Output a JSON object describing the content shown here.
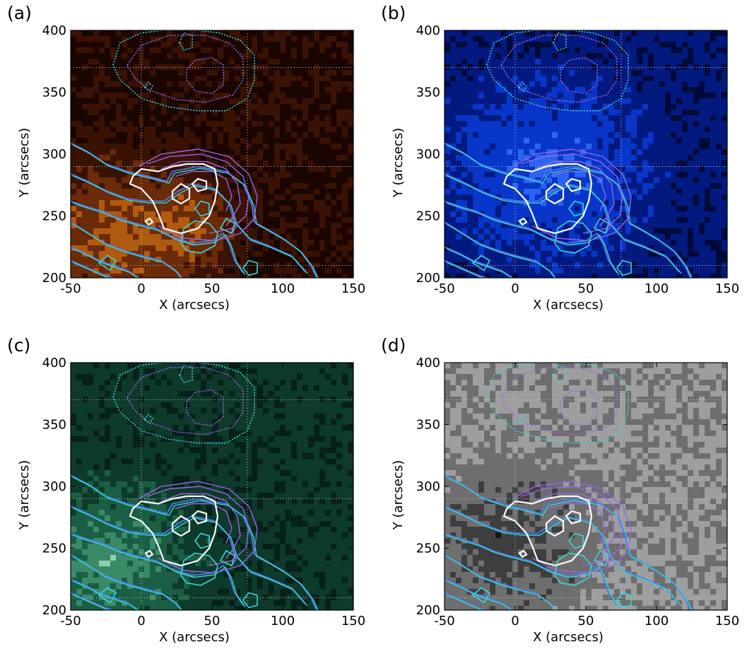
{
  "figure": {
    "panels": [
      {
        "label": "(a)",
        "colormap": "hot"
      },
      {
        "label": "(b)",
        "colormap": "blue"
      },
      {
        "label": "(c)",
        "colormap": "green"
      },
      {
        "label": "(d)",
        "colormap": "gray"
      }
    ],
    "colors": {
      "contour_cyan": "#3ad6d6",
      "contour_blue": "#4b7bea",
      "contour_purple": "#9a66e6",
      "contour_white": "#ffffff",
      "grid": "#d0d0d0"
    }
  },
  "chart_data": {
    "type": "heatmap",
    "xlabel": "X (arcsecs)",
    "ylabel": "Y (arcsecs)",
    "xlim": [
      -50,
      150
    ],
    "ylim": [
      200,
      400
    ],
    "xticks": [
      -50,
      0,
      50,
      100,
      150
    ],
    "yticks": [
      200,
      250,
      300,
      350,
      400
    ],
    "grid": true
  }
}
